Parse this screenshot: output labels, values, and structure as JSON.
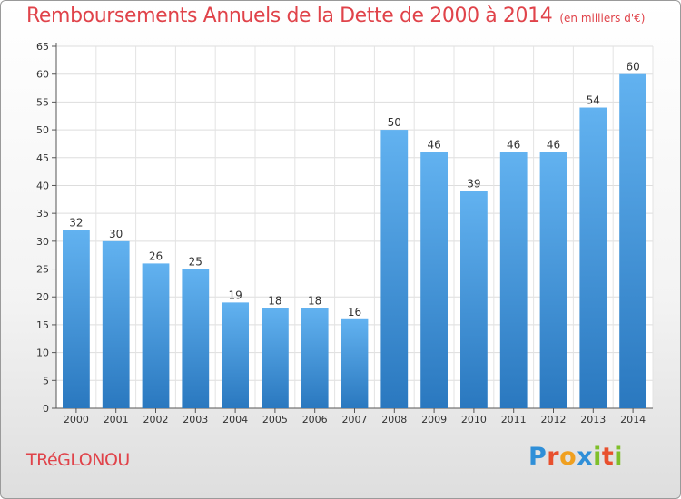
{
  "chart_data": {
    "type": "bar",
    "title": "Remboursements Annuels de la Dette de 2000 à 2014",
    "subtitle": "(en milliers d'€)",
    "categories": [
      "2000",
      "2001",
      "2002",
      "2003",
      "2004",
      "2005",
      "2006",
      "2007",
      "2008",
      "2009",
      "2010",
      "2011",
      "2012",
      "2013",
      "2014"
    ],
    "values": [
      32,
      30,
      26,
      25,
      19,
      18,
      18,
      16,
      50,
      46,
      39,
      46,
      46,
      54,
      60
    ],
    "xlabel": "",
    "ylabel": "",
    "ylim": [
      0,
      65
    ],
    "yticks": [
      0,
      5,
      10,
      15,
      20,
      25,
      30,
      35,
      40,
      45,
      50,
      55,
      60,
      65
    ],
    "grid": true,
    "bar_color": "#3d8fd6"
  },
  "footer": {
    "commune": "TRéGLONOU",
    "logo_letters": [
      {
        "char": "P",
        "color": "#2f8fd8"
      },
      {
        "char": "r",
        "color": "#e8502e"
      },
      {
        "char": "o",
        "color": "#f0a020"
      },
      {
        "char": "x",
        "color": "#2f8fd8"
      },
      {
        "char": "i",
        "color": "#7fbf2a"
      },
      {
        "char": "t",
        "color": "#e8502e"
      },
      {
        "char": "i",
        "color": "#7fbf2a"
      }
    ]
  }
}
